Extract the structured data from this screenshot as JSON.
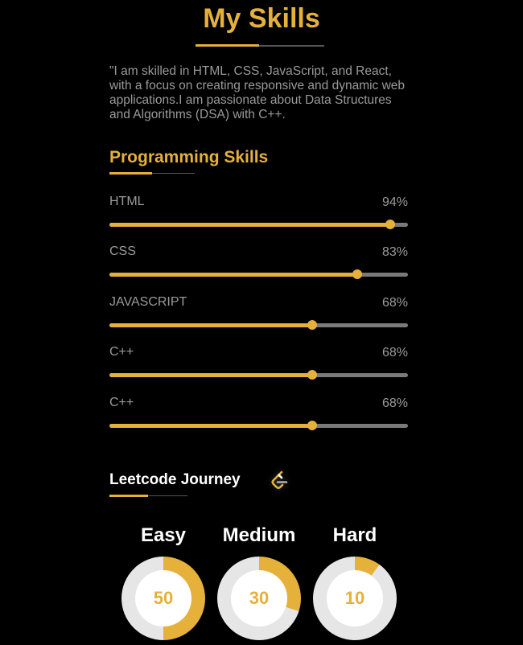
{
  "header": {
    "title": "My Skills",
    "intro": "\"I am skilled in HTML, CSS, JavaScript, and React, with a focus on creating responsive and dynamic web applications.I am passionate about Data Structures and Algorithms (DSA) with C++."
  },
  "programming": {
    "title": "Programming Skills",
    "skills": [
      {
        "name": "HTML",
        "percent_label": "94%",
        "percent": 94
      },
      {
        "name": "CSS",
        "percent_label": "83%",
        "percent": 83
      },
      {
        "name": "JAVASCRIPT",
        "percent_label": "68%",
        "percent": 68
      },
      {
        "name": "C++",
        "percent_label": "68%",
        "percent": 68
      },
      {
        "name": "C++",
        "percent_label": "68%",
        "percent": 68
      }
    ]
  },
  "leetcode": {
    "title": "Leetcode Journey",
    "icon": "leetcode-logo-icon",
    "difficulties": [
      {
        "label": "Easy",
        "count": "50",
        "progress": 0.5
      },
      {
        "label": "Medium",
        "count": "30",
        "progress": 0.3
      },
      {
        "label": "Hard",
        "count": "10",
        "progress": 0.1
      }
    ]
  },
  "colors": {
    "accent": "#e5b13a",
    "background": "#000000",
    "muted_text": "#9a9a9a",
    "track": "#7a7a7a",
    "donut_track": "#e6e6e6"
  }
}
